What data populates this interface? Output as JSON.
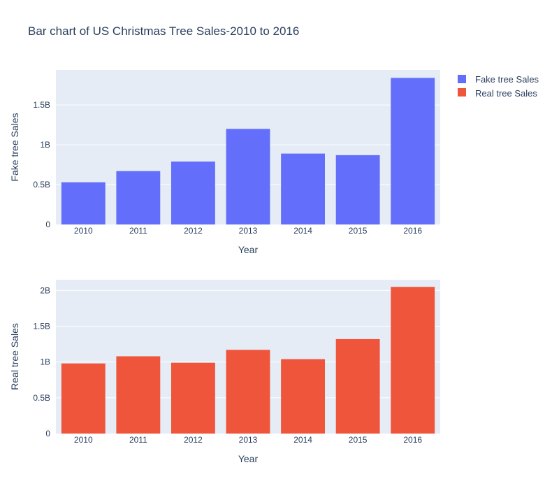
{
  "title": "Bar chart of US Christmas Tree Sales-2010 to 2016",
  "legend": {
    "placement": "top-right",
    "items": [
      {
        "label": "Fake tree Sales",
        "color": "#636efa"
      },
      {
        "label": "Real tree Sales",
        "color": "#ef553b"
      }
    ]
  },
  "chart_data": [
    {
      "type": "bar",
      "title": "",
      "xlabel": "Year",
      "ylabel": "Fake tree Sales",
      "categories": [
        "2010",
        "2011",
        "2012",
        "2013",
        "2014",
        "2015",
        "2016"
      ],
      "series": [
        {
          "name": "Fake tree Sales",
          "color": "#636efa",
          "values": [
            530000000,
            670000000,
            790000000,
            1200000000,
            890000000,
            870000000,
            1840000000
          ]
        }
      ],
      "ylim": [
        0,
        1940000000
      ],
      "yticks": [
        0,
        500000000,
        1000000000,
        1500000000
      ],
      "ytick_labels": [
        "0",
        "0.5B",
        "1B",
        "1.5B"
      ],
      "grid": true,
      "plot_bg": "#e5ecf6"
    },
    {
      "type": "bar",
      "title": "",
      "xlabel": "Year",
      "ylabel": "Real tree Sales",
      "categories": [
        "2010",
        "2011",
        "2012",
        "2013",
        "2014",
        "2015",
        "2016"
      ],
      "series": [
        {
          "name": "Real tree Sales",
          "color": "#ef553b",
          "values": [
            980000000,
            1080000000,
            990000000,
            1170000000,
            1040000000,
            1320000000,
            2050000000
          ]
        }
      ],
      "ylim": [
        0,
        2150000000
      ],
      "yticks": [
        0,
        500000000,
        1000000000,
        1500000000,
        2000000000
      ],
      "ytick_labels": [
        "0",
        "0.5B",
        "1B",
        "1.5B",
        "2B"
      ],
      "grid": true,
      "plot_bg": "#e5ecf6"
    }
  ]
}
